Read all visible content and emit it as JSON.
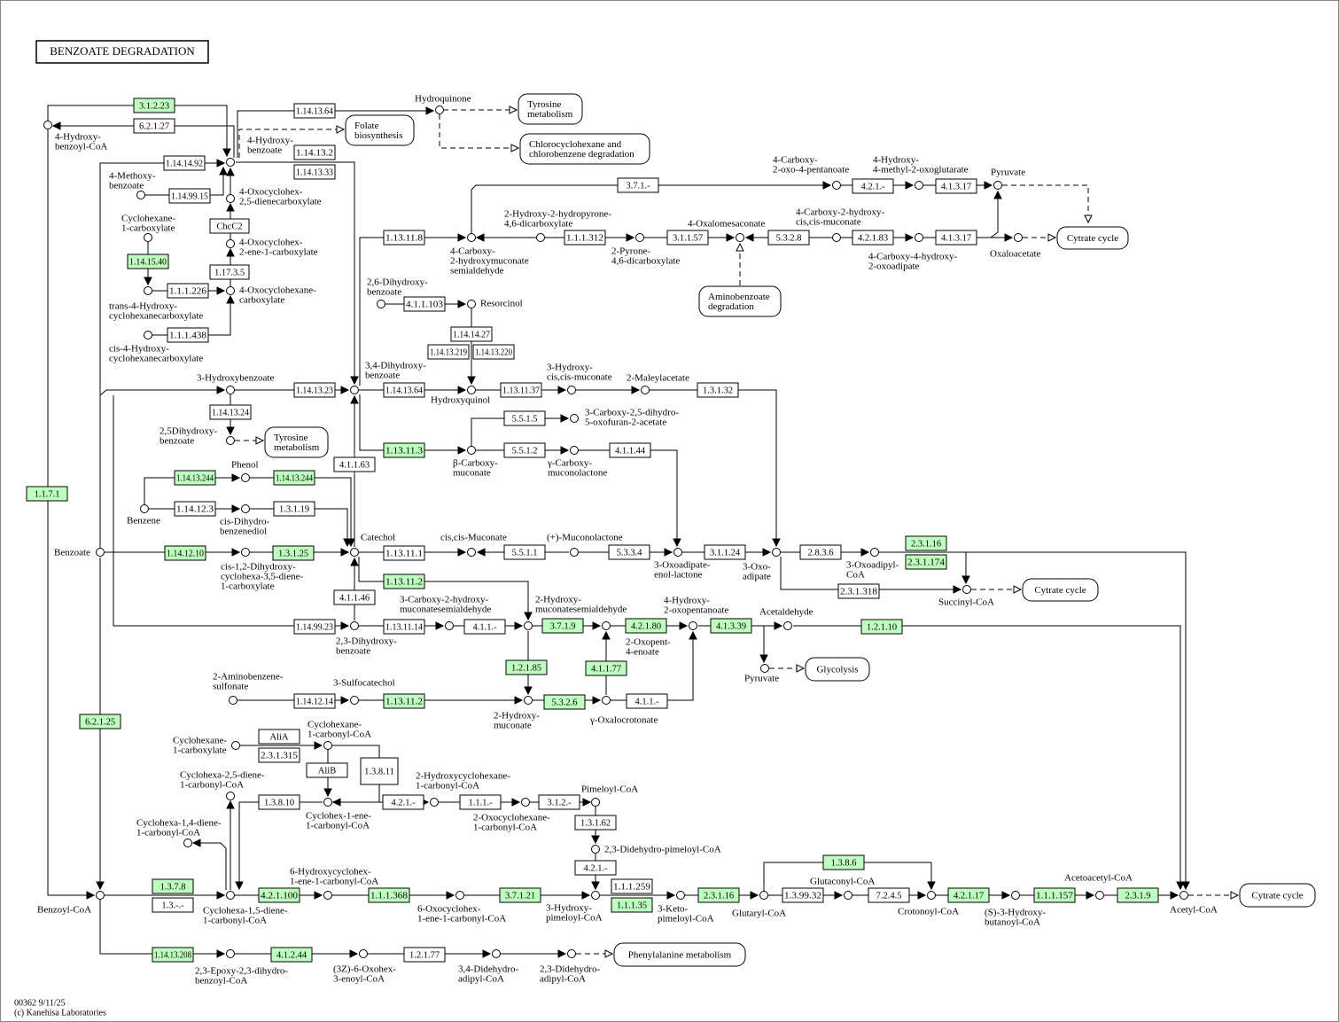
{
  "title": "BENZOATE DEGRADATION",
  "footer": [
    "00362 9/11/25",
    "(c) Kanehisa Laboratories"
  ],
  "compounds": [
    [
      "4-Hydroxy-",
      "benzoyl-CoA"
    ],
    [
      "4-Hydroxy-",
      "benzoate"
    ],
    [
      "Hydroquinone"
    ],
    [
      "4-Methoxy-",
      "benzoate"
    ],
    [
      "4-Oxocyclohex-",
      "2,5-dienecarboxylate"
    ],
    [
      "Cyclohexane-",
      "1-carboxylate"
    ],
    [
      "4-Oxocyclohex-",
      "2-ene-1-carboxylate"
    ],
    [
      "trans-4-Hydroxy-",
      "cyclohexanecarboxylate"
    ],
    [
      "4-Oxocyclohexane-",
      "carboxylate"
    ],
    [
      "cis-4-Hydroxy-",
      "cyclohexanecarboxylate"
    ],
    [
      "4-Carboxy-",
      "2-oxo-4-pentanoate"
    ],
    [
      "4-Hydroxy-",
      "4-methyl-2-oxoglutarate"
    ],
    [
      "Pyruvate"
    ],
    [
      "4-Carboxy-",
      "2-hydroxymuconate",
      "semialdehyde"
    ],
    [
      "2-Hydroxy-2-hydropyrone-",
      "4,6-dicarboxylate"
    ],
    [
      "2-Pyrone-",
      "4,6-dicarboxylate"
    ],
    [
      "4-Oxalomesaconate"
    ],
    [
      "4-Carboxy-2-hydroxy-",
      "cis,cis-muconate"
    ],
    [
      "4-Carboxy-4-hydroxy-",
      "2-oxoadipate"
    ],
    [
      "Oxaloacetate"
    ],
    [
      "2,6-Dihydroxy-",
      "benzoate"
    ],
    [
      "Resorcinol"
    ],
    [
      "3-Hydroxybenzoate"
    ],
    [
      "3,4-Dihydroxy-",
      "benzoate"
    ],
    [
      "Hydroxyquinol"
    ],
    [
      "3-Hydroxy-",
      "cis,cis-muconate"
    ],
    [
      "2-Maleylacetate"
    ],
    [
      "2,5Dihydroxy-",
      "benzoate"
    ],
    [
      "3-Carboxy-2,5-dihydro-",
      "5-oxofuran-2-acetate"
    ],
    [
      "β-Carboxy-",
      "muconate"
    ],
    [
      "γ-Carboxy-",
      "muconolactone"
    ],
    [
      "Phenol"
    ],
    [
      "Benzene"
    ],
    [
      "cis-Dihydro-",
      "benzenediol"
    ],
    [
      "Benzoate"
    ],
    [
      "cis-1,2-Dihydroxy-",
      "cyclohexa-3,5-diene-",
      "1-carboxylate"
    ],
    [
      "Catechol"
    ],
    [
      "cis,cis-Muconate"
    ],
    [
      "(+)-Muconolactone"
    ],
    [
      "3-Oxoadipate-",
      "enol-lactone"
    ],
    [
      "3-Oxo-",
      "adipate"
    ],
    [
      "3-Oxoadipyl-",
      "CoA"
    ],
    [
      "Succinyl-CoA"
    ],
    [
      "2,3-Dihydroxy-",
      "benzoate"
    ],
    [
      "3-Carboxy-2-hydroxy-",
      "muconatesemialdehyde"
    ],
    [
      "2-Hydroxy-",
      "muconatesemialdehyde"
    ],
    [
      "2-Oxopent-",
      "4-enoate"
    ],
    [
      "4-Hydroxy-",
      "2-oxopentanoate"
    ],
    [
      "Acetaldehyde"
    ],
    [
      "Pyruvate"
    ],
    [
      "2-Aminobenzene-",
      "sulfonate"
    ],
    [
      "3-Sulfocatechol"
    ],
    [
      "2-Hydroxy-",
      "muconate"
    ],
    [
      "γ-Oxalocrotonate"
    ],
    [
      "Cyclohexane-",
      "1-carboxylate"
    ],
    [
      "Cyclohexane-",
      "1-carbonyl-CoA"
    ],
    [
      "Cyclohexa-2,5-diene-",
      "1-carbonyl-CoA"
    ],
    [
      "Cyclohex-1-ene-",
      "1-carbonyl-CoA"
    ],
    [
      "2-Hydroxycyclohexane-",
      "1-carbonyl-CoA"
    ],
    [
      "2-Oxocyclohexane-",
      "1-carbonyl-CoA"
    ],
    [
      "Pimeloyl-CoA"
    ],
    [
      "Cyclohexa-1,4-diene-",
      "1-carbonyl-CoA"
    ],
    [
      "2,3-Didehydro-pimeloyl-CoA"
    ],
    [
      "Benzoyl-CoA"
    ],
    [
      "Cyclohexa-1,5-diene-",
      "1-carbonyl-CoA"
    ],
    [
      "6-Hydroxycyclohex-",
      "1-ene-1-carbonyl-CoA"
    ],
    [
      "6-Oxocyclohex-",
      "1-ene-1-carbonyl-CoA"
    ],
    [
      "3-Hydroxy-",
      "pimeloyl-CoA"
    ],
    [
      "3-Keto-",
      "pimeloyl-CoA"
    ],
    [
      "Glutaryl-CoA"
    ],
    [
      "Glutaconyl-CoA"
    ],
    [
      "Crotonoyl-CoA"
    ],
    [
      "(S)-3-Hydroxy-",
      "butanoyl-CoA"
    ],
    [
      "Acetoacetyl-CoA"
    ],
    [
      "Acetyl-CoA"
    ],
    [
      "2,3-Epoxy-2,3-dihydro-",
      "benzoyl-CoA"
    ],
    [
      "(3Z)-6-Oxohex-",
      "3-enoyl-CoA"
    ],
    [
      "3,4-Didehydro-",
      "adipyl-CoA"
    ],
    [
      "2,3-Didehydro-",
      "adipyl-CoA"
    ]
  ],
  "enzymes": [
    {
      "label": "3.1.2.23",
      "highlighted": true
    },
    {
      "label": "6.2.1.27"
    },
    {
      "label": "1.14.13.64"
    },
    {
      "label": "1.14.13.2"
    },
    {
      "label": "1.14.13.33"
    },
    {
      "label": "1.14.14.92"
    },
    {
      "label": "1.14.99.15"
    },
    {
      "label": "ChcC2"
    },
    {
      "label": "1.14.15.40",
      "highlighted": true
    },
    {
      "label": "1.17.3.5"
    },
    {
      "label": "1.1.1.226"
    },
    {
      "label": "1.1.1.438"
    },
    {
      "label": "3.7.1.-"
    },
    {
      "label": "4.2.1.-"
    },
    {
      "label": "4.1.3.17"
    },
    {
      "label": "1.13.11.8"
    },
    {
      "label": "1.1.1.312"
    },
    {
      "label": "3.1.1.57"
    },
    {
      "label": "5.3.2.8"
    },
    {
      "label": "4.2.1.83"
    },
    {
      "label": "4.1.3.17"
    },
    {
      "label": "4.1.1.103"
    },
    {
      "label": "1.14.14.27"
    },
    {
      "label": "1.14.13.219"
    },
    {
      "label": "1.14.13.220"
    },
    {
      "label": "1.14.13.23"
    },
    {
      "label": "1.14.13.64"
    },
    {
      "label": "1.13.11.37"
    },
    {
      "label": "1.3.1.32"
    },
    {
      "label": "1.14.13.24"
    },
    {
      "label": "5.5.1.5"
    },
    {
      "label": "5.5.1.2"
    },
    {
      "label": "4.1.1.44"
    },
    {
      "label": "1.13.11.3",
      "highlighted": true
    },
    {
      "label": "4.1.1.63"
    },
    {
      "label": "1.14.13.244",
      "highlighted": true
    },
    {
      "label": "1.14.13.244",
      "highlighted": true
    },
    {
      "label": "1.14.12.3"
    },
    {
      "label": "1.3.1.19"
    },
    {
      "label": "1.1.7.1",
      "highlighted": true
    },
    {
      "label": "1.14.12.10",
      "highlighted": true
    },
    {
      "label": "1.3.1.25",
      "highlighted": true
    },
    {
      "label": "1.13.11.1"
    },
    {
      "label": "5.5.1.1"
    },
    {
      "label": "5.3.3.4"
    },
    {
      "label": "3.1.1.24"
    },
    {
      "label": "2.8.3.6"
    },
    {
      "label": "2.3.1.16",
      "highlighted": true
    },
    {
      "label": "2.3.1.174",
      "highlighted": true
    },
    {
      "label": "2.3.1.318"
    },
    {
      "label": "1.13.11.2",
      "highlighted": true
    },
    {
      "label": "4.1.1.46"
    },
    {
      "label": "1.14.99.23"
    },
    {
      "label": "1.13.11.14"
    },
    {
      "label": "4.1.1.-"
    },
    {
      "label": "3.7.1.9",
      "highlighted": true
    },
    {
      "label": "4.2.1.80",
      "highlighted": true
    },
    {
      "label": "4.1.3.39",
      "highlighted": true
    },
    {
      "label": "1.2.1.10",
      "highlighted": true
    },
    {
      "label": "1.2.1.85",
      "highlighted": true
    },
    {
      "label": "4.1.1.77",
      "highlighted": true
    },
    {
      "label": "1.14.12.14"
    },
    {
      "label": "1.13.11.2",
      "highlighted": true
    },
    {
      "label": "5.3.2.6",
      "highlighted": true
    },
    {
      "label": "4.1.1.-"
    },
    {
      "label": "6.2.1.25",
      "highlighted": true
    },
    {
      "label": "AliA"
    },
    {
      "label": "2.3.1.315"
    },
    {
      "label": "AliB"
    },
    {
      "label": "1.3.8.11"
    },
    {
      "label": "1.3.8.10"
    },
    {
      "label": "4.2.1.-"
    },
    {
      "label": "1.1.1.-"
    },
    {
      "label": "3.1.2.-"
    },
    {
      "label": "1.3.1.62"
    },
    {
      "label": "4.2.1.-"
    },
    {
      "label": "1.1.1.259"
    },
    {
      "label": "1.1.1.35",
      "highlighted": true
    },
    {
      "label": "1.3.7.8",
      "highlighted": true
    },
    {
      "label": "1.3.-.-"
    },
    {
      "label": "4.2.1.100",
      "highlighted": true
    },
    {
      "label": "1.1.1.368",
      "highlighted": true
    },
    {
      "label": "3.7.1.21",
      "highlighted": true
    },
    {
      "label": "2.3.1.16",
      "highlighted": true
    },
    {
      "label": "1.3.99.32"
    },
    {
      "label": "7.2.4.5"
    },
    {
      "label": "1.3.8.6",
      "highlighted": true
    },
    {
      "label": "4.2.1.17",
      "highlighted": true
    },
    {
      "label": "1.1.1.157",
      "highlighted": true
    },
    {
      "label": "2.3.1.9",
      "highlighted": true
    },
    {
      "label": "1.14.13.208",
      "highlighted": true
    },
    {
      "label": "4.1.2.44",
      "highlighted": true
    },
    {
      "label": "1.2.1.77"
    }
  ],
  "maps": [
    [
      "Tyrosine",
      "metabolism"
    ],
    [
      "Folate",
      "biosynthesis"
    ],
    [
      "Chlorocyclohexane and",
      "chlorobenzene degradation"
    ],
    [
      "Cytrate cycle"
    ],
    [
      "Aminobenzoate",
      "degradation"
    ],
    [
      "Tyrosine",
      "metabolism"
    ],
    [
      "Cytrate cycle"
    ],
    [
      "Glycolysis"
    ],
    [
      "Cytrate cycle"
    ],
    [
      "Phenylalanine metabolism"
    ]
  ]
}
